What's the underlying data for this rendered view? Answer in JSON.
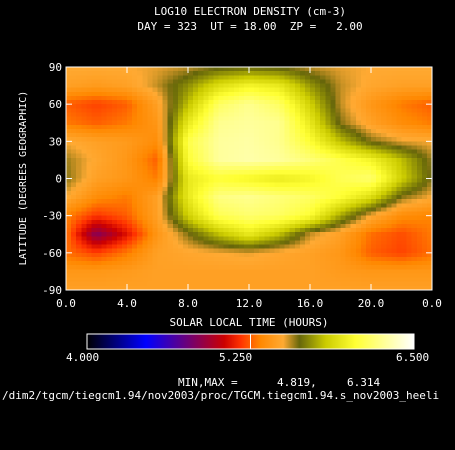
{
  "chart_data": {
    "type": "heatmap",
    "title": "LOG10 ELECTRON DENSITY (cm-3)",
    "subtitle": "DAY = 323  UT = 18.00  ZP =   2.00",
    "xlabel": "SOLAR LOCAL TIME (HOURS)",
    "ylabel": "LATITUDE (DEGREES GEOGRAPHIC)",
    "xlim": [
      0,
      24
    ],
    "ylim": [
      -90,
      90
    ],
    "x_ticks": [
      "0.0",
      "4.0",
      "8.0",
      "12.0",
      "16.0",
      "20.0",
      "0.0"
    ],
    "y_ticks": [
      "90",
      "60",
      "30",
      "0",
      "-30",
      "-60",
      "-90"
    ],
    "x_tick_values": [
      0,
      4,
      8,
      12,
      16,
      20,
      24
    ],
    "y_tick_values": [
      90,
      60,
      30,
      0,
      -30,
      -60,
      -90
    ],
    "hours": [
      0,
      2,
      4,
      6,
      8,
      10,
      12,
      14,
      16,
      18,
      20,
      22,
      24
    ],
    "latitudes": [
      90,
      75,
      60,
      45,
      30,
      15,
      0,
      -15,
      -30,
      -45,
      -60,
      -75,
      -90
    ],
    "values": [
      [
        5.5,
        5.5,
        5.5,
        5.52,
        5.55,
        5.6,
        5.62,
        5.6,
        5.55,
        5.52,
        5.5,
        5.5,
        5.5
      ],
      [
        5.45,
        5.42,
        5.45,
        5.55,
        5.7,
        5.9,
        6.0,
        5.95,
        5.72,
        5.55,
        5.48,
        5.45,
        5.45
      ],
      [
        5.25,
        5.2,
        5.25,
        5.45,
        5.8,
        6.15,
        6.25,
        6.15,
        5.85,
        5.55,
        5.4,
        5.3,
        5.25
      ],
      [
        5.3,
        5.25,
        5.3,
        5.4,
        5.95,
        6.25,
        6.28,
        6.25,
        5.95,
        5.6,
        5.45,
        5.35,
        5.3
      ],
      [
        5.5,
        5.45,
        5.42,
        5.35,
        6.1,
        6.28,
        6.3,
        6.25,
        6.05,
        5.8,
        5.6,
        5.52,
        5.5
      ],
      [
        5.58,
        5.48,
        5.4,
        5.25,
        6.05,
        6.28,
        6.31,
        6.28,
        6.2,
        6.1,
        6.0,
        5.8,
        5.58
      ],
      [
        5.6,
        5.45,
        5.4,
        5.3,
        5.95,
        6.05,
        6.0,
        5.95,
        6.0,
        6.12,
        6.18,
        5.85,
        5.6
      ],
      [
        5.5,
        5.35,
        5.3,
        5.45,
        5.95,
        6.22,
        6.25,
        6.2,
        6.15,
        6.05,
        5.9,
        5.6,
        5.5
      ],
      [
        5.32,
        5.18,
        5.25,
        5.45,
        5.85,
        6.12,
        6.18,
        6.15,
        6.05,
        5.75,
        5.5,
        5.35,
        5.32
      ],
      [
        5.3,
        4.85,
        5.1,
        5.4,
        5.6,
        5.8,
        5.95,
        5.8,
        5.55,
        5.45,
        5.28,
        5.22,
        5.3
      ],
      [
        5.28,
        5.2,
        5.3,
        5.45,
        5.48,
        5.5,
        5.52,
        5.48,
        5.45,
        5.4,
        5.25,
        5.2,
        5.28
      ],
      [
        5.4,
        5.4,
        5.42,
        5.45,
        5.45,
        5.45,
        5.45,
        5.45,
        5.45,
        5.42,
        5.4,
        5.4,
        5.4
      ],
      [
        5.45,
        5.45,
        5.45,
        5.45,
        5.45,
        5.45,
        5.45,
        5.45,
        5.45,
        5.45,
        5.45,
        5.45,
        5.45
      ]
    ],
    "colorbar": {
      "min": 4.0,
      "max": 6.5,
      "min_label": "4.000",
      "mid_label": "5.250",
      "max_label": "6.500",
      "colors": [
        "#000000",
        "#0000ff",
        "#cc0000",
        "#ff3300",
        "#ff8800",
        "#ffaa33",
        "#66660a",
        "#cccc00",
        "#ffff33",
        "#ffffff"
      ],
      "stops": [
        0.0,
        0.18,
        0.42,
        0.47,
        0.53,
        0.6,
        0.65,
        0.73,
        0.82,
        1.0
      ]
    },
    "minmax_label": "MIN,MAX =",
    "min_value": "4.819,",
    "max_value": "6.314",
    "footer_path": "/dim2/tgcm/tiegcm1.94/nov2003/proc/TGCM.tiegcm1.94.s_nov2003_heeli"
  }
}
